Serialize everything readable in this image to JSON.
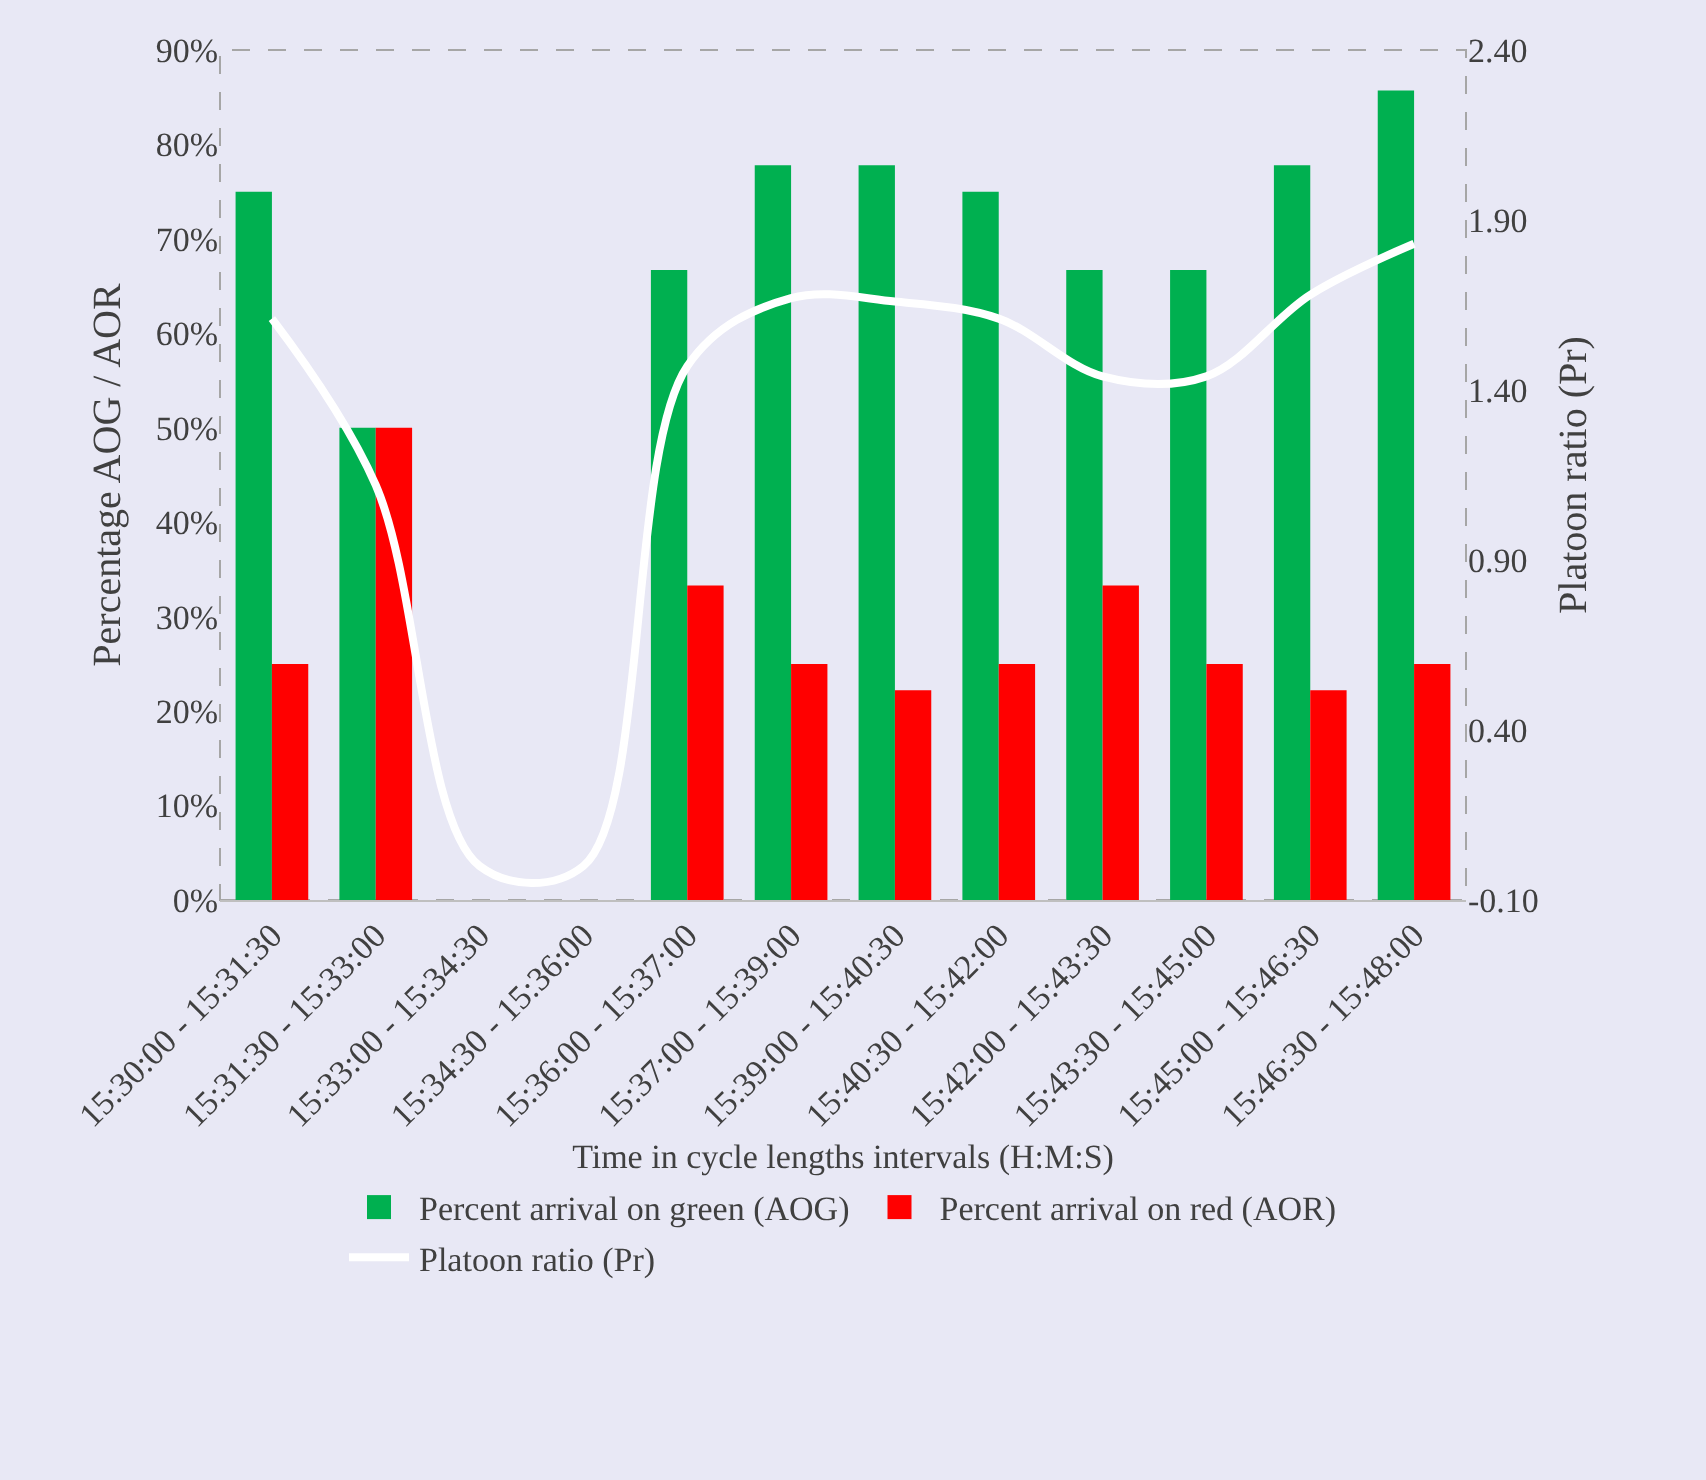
{
  "chart_data": {
    "type": "bar",
    "xlabel": "Time in cycle lengths intervals (H:M:S)",
    "ylabel": "Percentage AOG / AOR",
    "y2label": "Platoon ratio (Pr)",
    "categories": [
      "15:30:00 - 15:31:30",
      "15:31:30 - 15:33:00",
      "15:33:00 - 15:34:30",
      "15:34:30 - 15:36:00",
      "15:36:00 - 15:37:00",
      "15:37:00 - 15:39:00",
      "15:39:00 - 15:40:30",
      "15:40:30 - 15:42:00",
      "15:42:00 - 15:43:30",
      "15:43:30 - 15:45:00",
      "15:45:00 - 15:46:30",
      "15:46:30 - 15:48:00"
    ],
    "series": [
      {
        "name": "Percent arrival on green (AOG)",
        "color": "#00b050",
        "values": [
          75,
          50,
          0,
          0,
          66.7,
          77.8,
          77.8,
          75,
          66.7,
          66.7,
          77.8,
          85.7
        ]
      },
      {
        "name": "Percent arrival on red (AOR)",
        "color": "#ff0000",
        "values": [
          25,
          50,
          0,
          0,
          33.3,
          25,
          22.2,
          25,
          33.3,
          25,
          22.2,
          25
        ]
      },
      {
        "name": "Platoon ratio (Pr)",
        "type": "line",
        "axis": "y2",
        "color": "#ffffff",
        "values": [
          1.61,
          1.12,
          0,
          0,
          1.47,
          1.67,
          1.66,
          1.61,
          1.44,
          1.44,
          1.68,
          1.83
        ]
      }
    ],
    "ylim": [
      0,
      90
    ],
    "yticks": [
      {
        "value": 0,
        "label": "0%"
      },
      {
        "value": 10,
        "label": "10%"
      },
      {
        "value": 20,
        "label": "20%"
      },
      {
        "value": 30,
        "label": "30%"
      },
      {
        "value": 40,
        "label": "40%"
      },
      {
        "value": 50,
        "label": "50%"
      },
      {
        "value": 60,
        "label": "60%"
      },
      {
        "value": 70,
        "label": "70%"
      },
      {
        "value": 80,
        "label": "80%"
      },
      {
        "value": 90,
        "label": "90%"
      }
    ],
    "y2lim": [
      -0.1,
      2.4
    ],
    "y2ticks": [
      {
        "value": -0.1,
        "label": "-0.10"
      },
      {
        "value": 0.4,
        "label": "0.40"
      },
      {
        "value": 0.9,
        "label": "0.90"
      },
      {
        "value": 1.4,
        "label": "1.40"
      },
      {
        "value": 1.9,
        "label": "1.90"
      },
      {
        "value": 2.4,
        "label": "2.40"
      }
    ],
    "grid": false,
    "legend": "bottom",
    "marker": "none",
    "line_style": "solid"
  }
}
